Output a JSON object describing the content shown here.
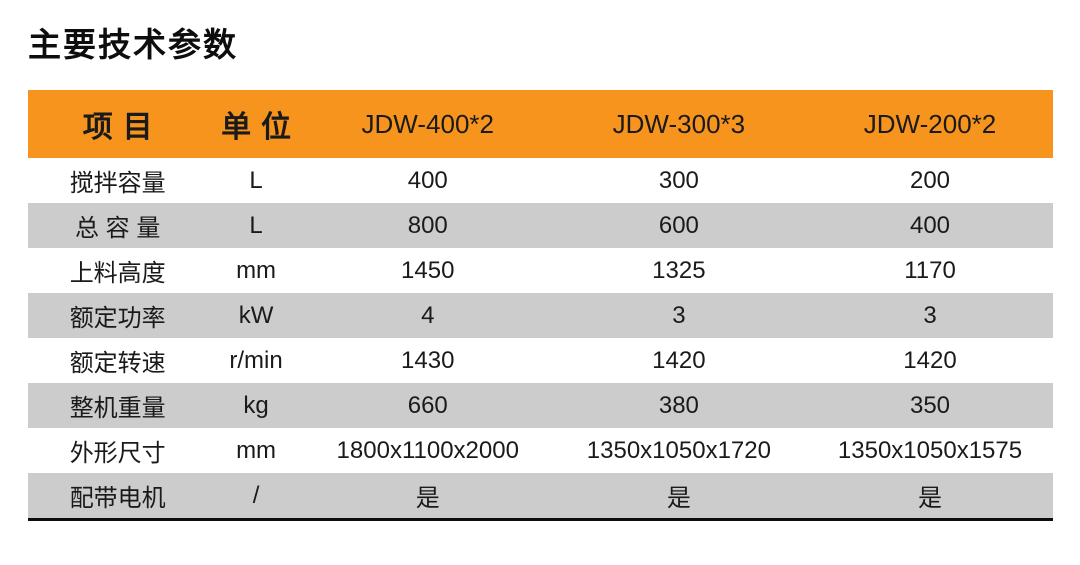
{
  "page": {
    "title": "主要技术参数"
  },
  "colors": {
    "header_bg": "#F7941D",
    "alt_row_bg": "#CCCCCC",
    "text": "#1A1A1A",
    "bottom_rule": "#0D0D0D"
  },
  "table": {
    "header": {
      "item_label": "项目",
      "unit_label": "单位",
      "models": [
        "JDW-400*2",
        "JDW-300*3",
        "JDW-200*2"
      ]
    },
    "rows": [
      {
        "label": "搅拌容量",
        "unit": "L",
        "values": [
          "400",
          "300",
          "200"
        ]
      },
      {
        "label": "总 容 量",
        "unit": "L",
        "values": [
          "800",
          "600",
          "400"
        ]
      },
      {
        "label": "上料高度",
        "unit": "mm",
        "values": [
          "1450",
          "1325",
          "1170"
        ]
      },
      {
        "label": "额定功率",
        "unit": "kW",
        "values": [
          "4",
          "3",
          "3"
        ]
      },
      {
        "label": "额定转速",
        "unit": "r/min",
        "values": [
          "1430",
          "1420",
          "1420"
        ]
      },
      {
        "label": "整机重量",
        "unit": "kg",
        "values": [
          "660",
          "380",
          "350"
        ]
      },
      {
        "label": "外形尺寸",
        "unit": "mm",
        "values": [
          "1800x1100x2000",
          "1350x1050x1720",
          "1350x1050x1575"
        ]
      },
      {
        "label": "配带电机",
        "unit": "/",
        "values": [
          "是",
          "是",
          "是"
        ]
      }
    ]
  }
}
